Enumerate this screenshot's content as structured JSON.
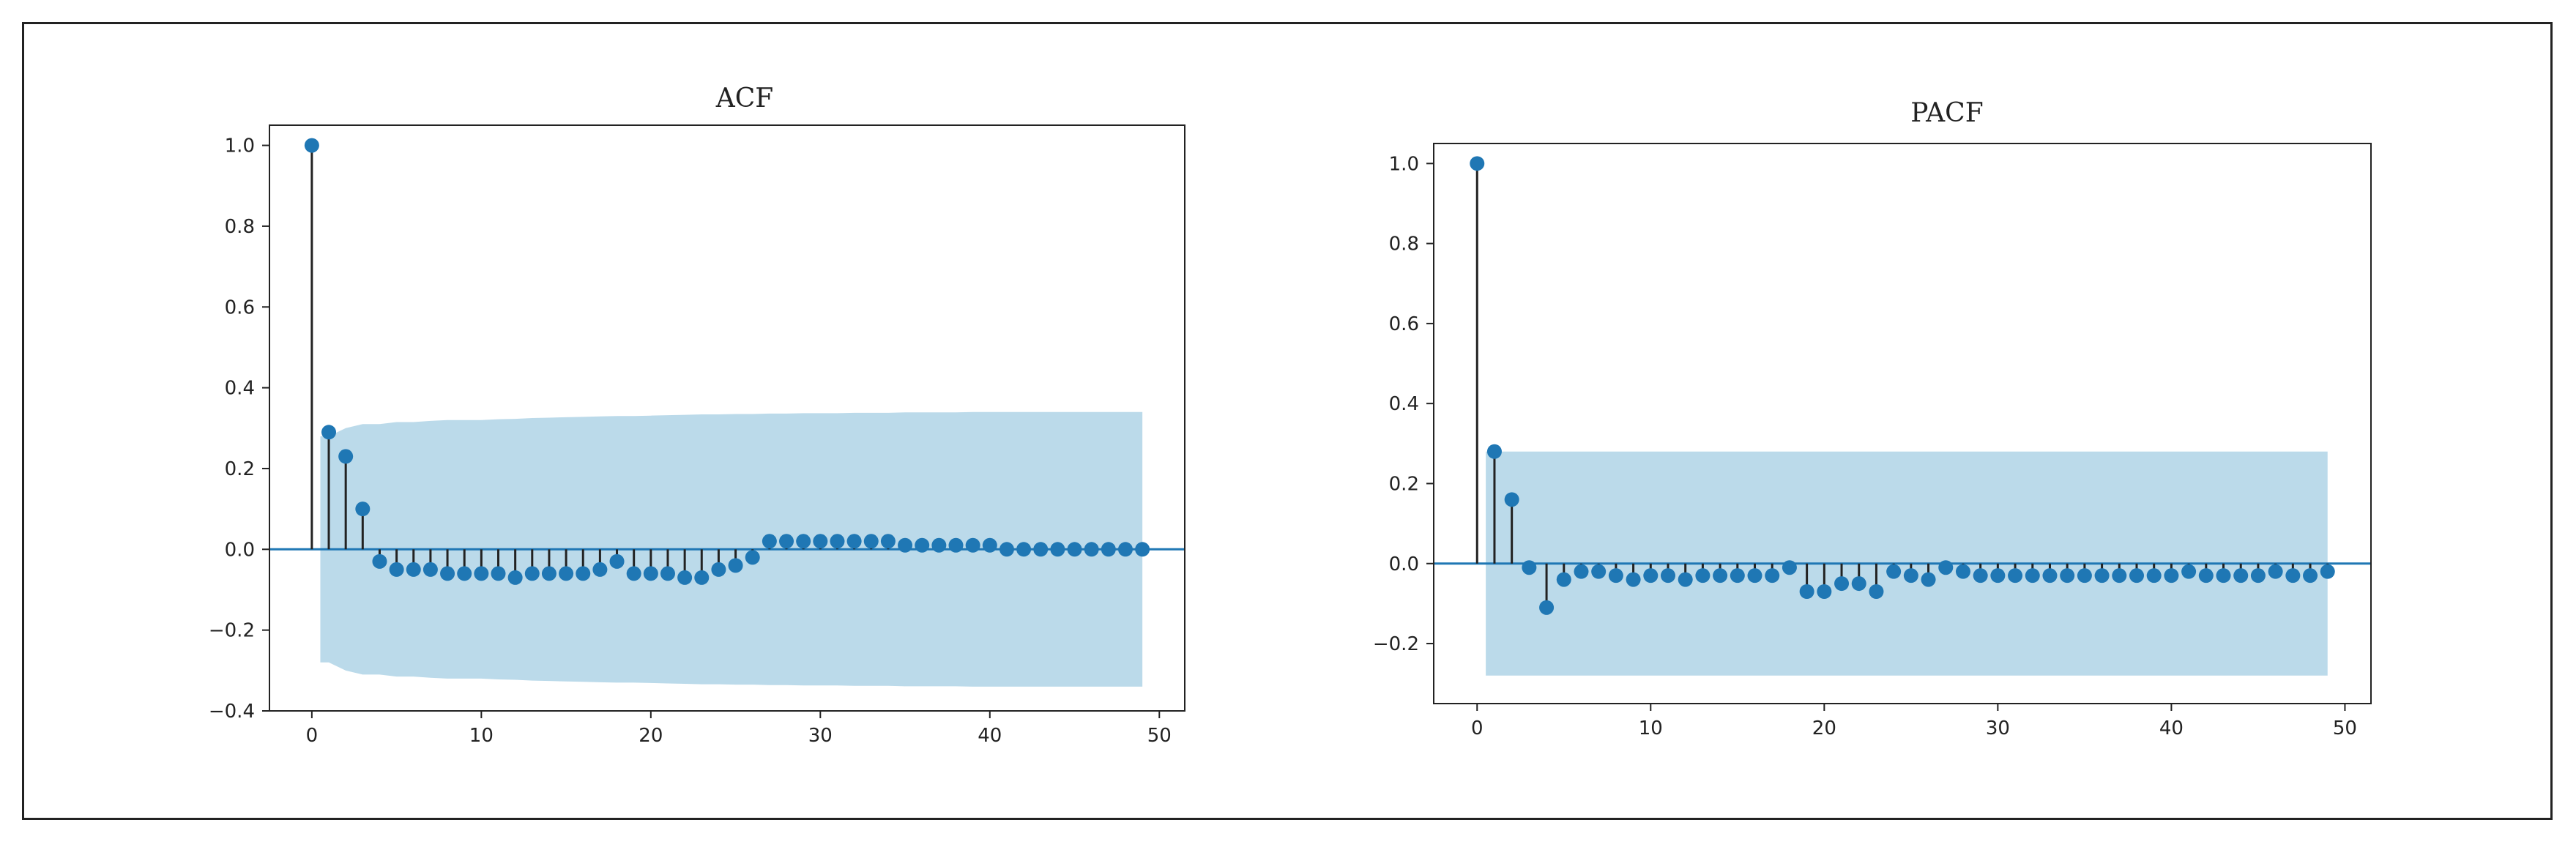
{
  "chart_data": [
    {
      "type": "stem",
      "title": "ACF",
      "xlabel": "",
      "ylabel": "",
      "xlim": [
        -2.5,
        51.5
      ],
      "ylim": [
        -0.4,
        1.05
      ],
      "xticks": [
        0,
        10,
        20,
        30,
        40,
        50
      ],
      "yticks": [
        -0.4,
        -0.2,
        0.0,
        0.2,
        0.4,
        0.6,
        0.8,
        1.0
      ],
      "grid": false,
      "lags": [
        0,
        1,
        2,
        3,
        4,
        5,
        6,
        7,
        8,
        9,
        10,
        11,
        12,
        13,
        14,
        15,
        16,
        17,
        18,
        19,
        20,
        21,
        22,
        23,
        24,
        25,
        26,
        27,
        28,
        29,
        30,
        31,
        32,
        33,
        34,
        35,
        36,
        37,
        38,
        39,
        40,
        41,
        42,
        43,
        44,
        45,
        46,
        47,
        48,
        49
      ],
      "values": [
        1.0,
        0.29,
        0.23,
        0.1,
        -0.03,
        -0.05,
        -0.05,
        -0.05,
        -0.06,
        -0.06,
        -0.06,
        -0.06,
        -0.07,
        -0.06,
        -0.06,
        -0.06,
        -0.06,
        -0.05,
        -0.03,
        -0.06,
        -0.06,
        -0.06,
        -0.07,
        -0.07,
        -0.05,
        -0.04,
        -0.02,
        0.02,
        0.02,
        0.02,
        0.02,
        0.02,
        0.02,
        0.02,
        0.02,
        0.01,
        0.01,
        0.01,
        0.01,
        0.01,
        0.01,
        0.0,
        0.0,
        0.0,
        0.0,
        0.0,
        0.0,
        0.0,
        0.0,
        0.0
      ],
      "confidence_band": [
        0.0,
        0.28,
        0.3,
        0.31,
        0.31,
        0.315,
        0.315,
        0.318,
        0.32,
        0.32,
        0.32,
        0.322,
        0.323,
        0.325,
        0.326,
        0.327,
        0.328,
        0.329,
        0.33,
        0.33,
        0.331,
        0.332,
        0.333,
        0.334,
        0.334,
        0.335,
        0.335,
        0.336,
        0.336,
        0.337,
        0.337,
        0.337,
        0.338,
        0.338,
        0.338,
        0.339,
        0.339,
        0.339,
        0.339,
        0.34,
        0.34,
        0.34,
        0.34,
        0.34,
        0.34,
        0.34,
        0.34,
        0.34,
        0.34,
        0.34
      ],
      "colors": {
        "marker": "#1f77b4",
        "stem": "#222222",
        "band": "#9ecae1",
        "baseline": "#1f77b4"
      }
    },
    {
      "type": "stem",
      "title": "PACF",
      "xlabel": "",
      "ylabel": "",
      "xlim": [
        -2.5,
        51.5
      ],
      "ylim": [
        -0.35,
        1.05
      ],
      "xticks": [
        0,
        10,
        20,
        30,
        40,
        50
      ],
      "yticks": [
        -0.2,
        0.0,
        0.2,
        0.4,
        0.6,
        0.8,
        1.0
      ],
      "grid": false,
      "lags": [
        0,
        1,
        2,
        3,
        4,
        5,
        6,
        7,
        8,
        9,
        10,
        11,
        12,
        13,
        14,
        15,
        16,
        17,
        18,
        19,
        20,
        21,
        22,
        23,
        24,
        25,
        26,
        27,
        28,
        29,
        30,
        31,
        32,
        33,
        34,
        35,
        36,
        37,
        38,
        39,
        40,
        41,
        42,
        43,
        44,
        45,
        46,
        47,
        48,
        49
      ],
      "values": [
        1.0,
        0.28,
        0.16,
        -0.01,
        -0.11,
        -0.04,
        -0.02,
        -0.02,
        -0.03,
        -0.04,
        -0.03,
        -0.03,
        -0.04,
        -0.03,
        -0.03,
        -0.03,
        -0.03,
        -0.03,
        -0.01,
        -0.07,
        -0.07,
        -0.05,
        -0.05,
        -0.07,
        -0.02,
        -0.03,
        -0.04,
        -0.01,
        -0.02,
        -0.03,
        -0.03,
        -0.03,
        -0.03,
        -0.03,
        -0.03,
        -0.03,
        -0.03,
        -0.03,
        -0.03,
        -0.03,
        -0.03,
        -0.02,
        -0.03,
        -0.03,
        -0.03,
        -0.03,
        -0.02,
        -0.03,
        -0.03,
        -0.02
      ],
      "confidence_band": [
        0.28
      ],
      "colors": {
        "marker": "#1f77b4",
        "stem": "#222222",
        "band": "#9ecae1",
        "baseline": "#1f77b4"
      }
    }
  ]
}
